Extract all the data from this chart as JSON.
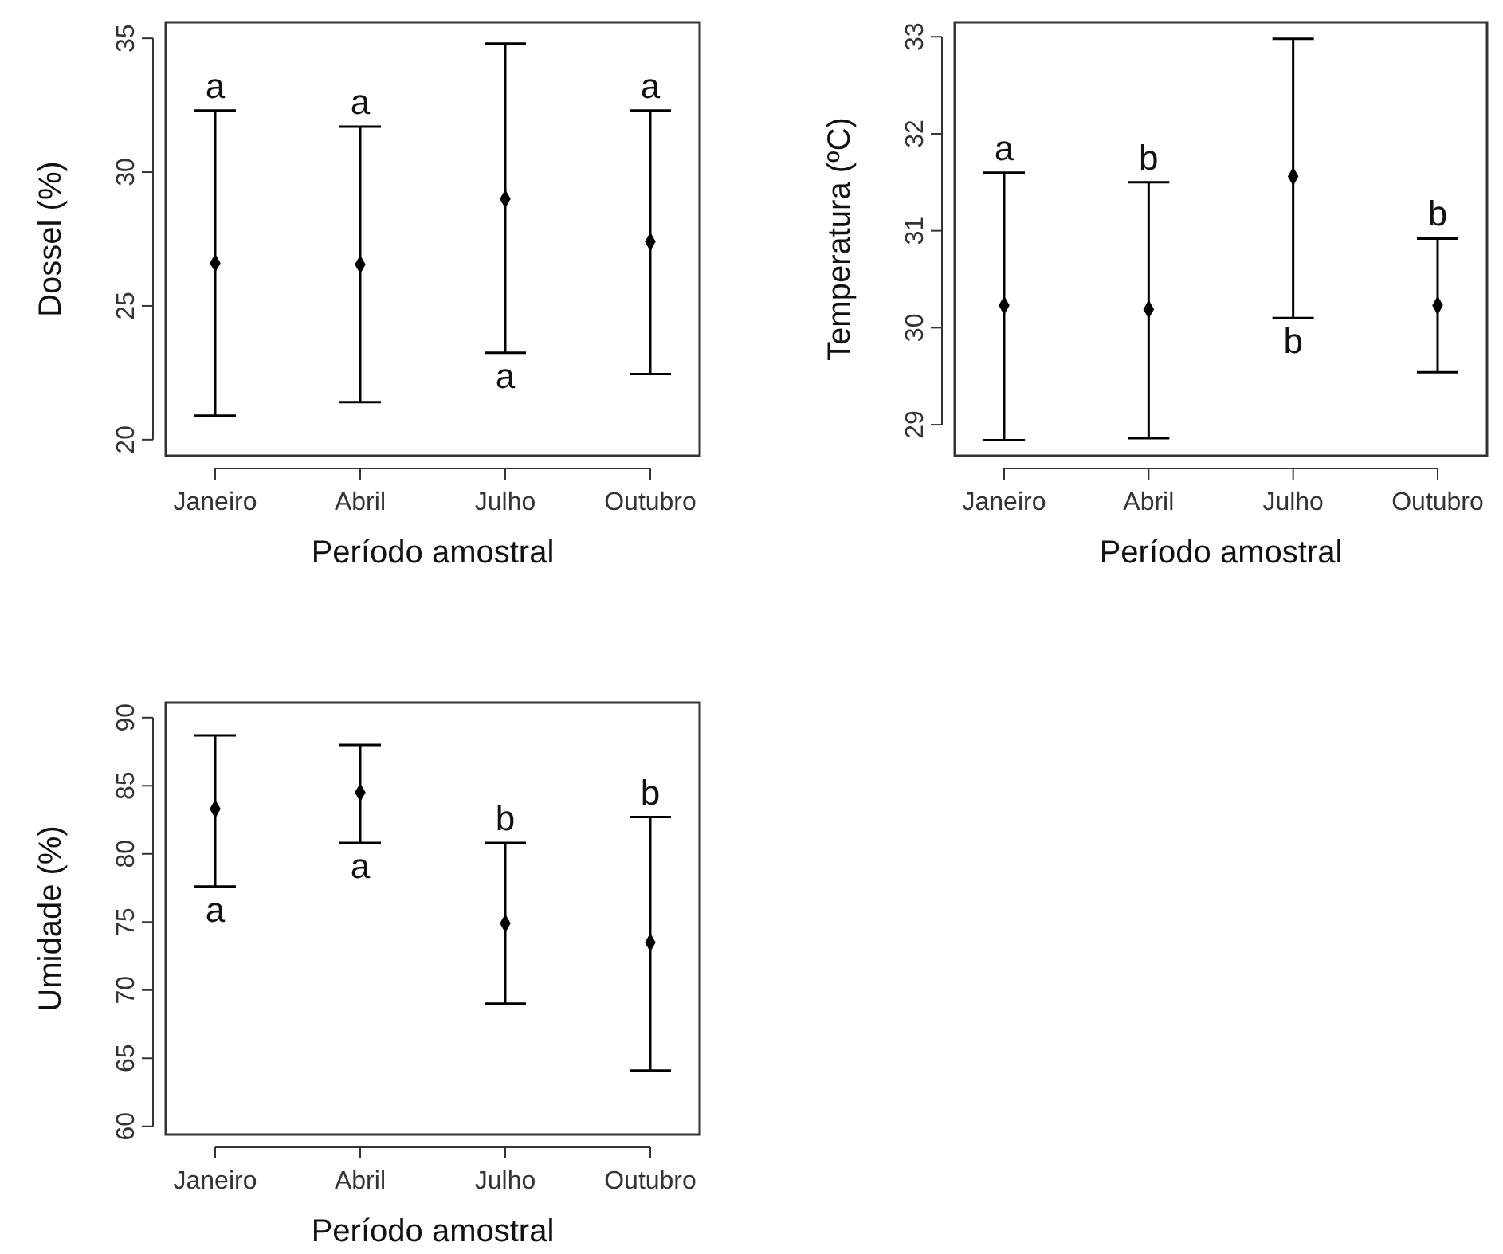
{
  "chart_data": [
    {
      "type": "scatter",
      "ylabel": "Dossel (%)",
      "xlabel": "Período amostral",
      "categories": [
        "Janeiro",
        "Abril",
        "Julho",
        "Outubro"
      ],
      "marker": "diamond",
      "grid": false,
      "ylim": [
        19.4,
        35.6
      ],
      "yticks": [
        20,
        25,
        30,
        35
      ],
      "series": [
        {
          "color": "#000000",
          "values": [
            26.6,
            26.55,
            29.0,
            27.4
          ],
          "errors": [
            [
              20.9,
              32.3
            ],
            [
              21.4,
              31.7
            ],
            [
              23.25,
              34.8
            ],
            [
              22.45,
              32.3
            ]
          ]
        }
      ],
      "annotations": [
        {
          "text": "a",
          "x": "Janeiro",
          "y": 32.3
        },
        {
          "text": "a",
          "x": "Abril",
          "y": 31.7
        },
        {
          "text": "a",
          "x": "Julho",
          "y": 23.25
        },
        {
          "text": "a",
          "x": "Outubro",
          "y": 32.3
        }
      ]
    },
    {
      "type": "scatter",
      "ylabel": "Temperatura (ºC)",
      "xlabel": "Período amostral",
      "categories": [
        "Janeiro",
        "Abril",
        "Julho",
        "Outubro"
      ],
      "marker": "diamond",
      "grid": false,
      "ylim": [
        28.68,
        33.15
      ],
      "yticks": [
        29,
        30,
        31,
        32,
        33
      ],
      "series": [
        {
          "color": "#000000",
          "values": [
            30.23,
            30.19,
            31.56,
            30.23
          ],
          "errors": [
            [
              28.84,
              31.6
            ],
            [
              28.86,
              31.5
            ],
            [
              30.1,
              32.98
            ],
            [
              29.54,
              30.92
            ]
          ]
        }
      ],
      "annotations": [
        {
          "text": "a",
          "x": "Janeiro",
          "y": 31.6
        },
        {
          "text": "b",
          "x": "Abril",
          "y": 31.5
        },
        {
          "text": "b",
          "x": "Julho",
          "y": 30.1
        },
        {
          "text": "b",
          "x": "Outubro",
          "y": 30.92
        }
      ]
    },
    {
      "type": "scatter",
      "ylabel": "Umidade (%)",
      "xlabel": "Período amostral",
      "categories": [
        "Janeiro",
        "Abril",
        "Julho",
        "Outubro"
      ],
      "marker": "diamond",
      "grid": false,
      "ylim": [
        59.4,
        91.1
      ],
      "yticks": [
        60,
        65,
        70,
        75,
        80,
        85,
        90
      ],
      "series": [
        {
          "color": "#000000",
          "values": [
            83.3,
            84.5,
            74.9,
            73.5
          ],
          "errors": [
            [
              77.6,
              88.7
            ],
            [
              80.8,
              88.0
            ],
            [
              69.0,
              80.8
            ],
            [
              64.1,
              82.7
            ]
          ]
        }
      ],
      "annotations": [
        {
          "text": "a",
          "x": "Janeiro",
          "y": 77.6
        },
        {
          "text": "a",
          "x": "Abril",
          "y": 80.8
        },
        {
          "text": "b",
          "x": "Julho",
          "y": 80.8
        },
        {
          "text": "b",
          "x": "Outubro",
          "y": 82.7
        }
      ]
    }
  ]
}
